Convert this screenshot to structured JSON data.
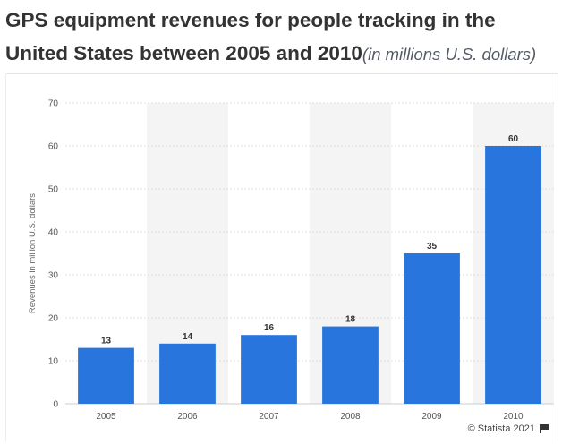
{
  "header": {
    "title": "GPS equipment revenues for people tracking in the United States between 2005 and 2010",
    "subtitle": "(in millions U.S. dollars)"
  },
  "chart_data": {
    "type": "bar",
    "categories": [
      "2005",
      "2006",
      "2007",
      "2008",
      "2009",
      "2010"
    ],
    "values": [
      13,
      14,
      16,
      18,
      35,
      60
    ],
    "value_labels": [
      "13",
      "14",
      "16",
      "18",
      "35",
      "60"
    ],
    "ylabel": "Revenues in million U.S. dollars",
    "xlabel": "",
    "ylim": [
      0,
      70
    ],
    "yticks": [
      0,
      10,
      20,
      30,
      40,
      50,
      60,
      70
    ],
    "ytick_labels": [
      "0",
      "10",
      "20",
      "30",
      "40",
      "50",
      "60",
      "70"
    ],
    "grid": true,
    "bar_color": "#2876dd",
    "band_color": "#f4f4f4",
    "grid_color": "#e0e0e0"
  },
  "footer": {
    "credit": "© Statista 2021",
    "credit_icon": "flag-icon"
  }
}
